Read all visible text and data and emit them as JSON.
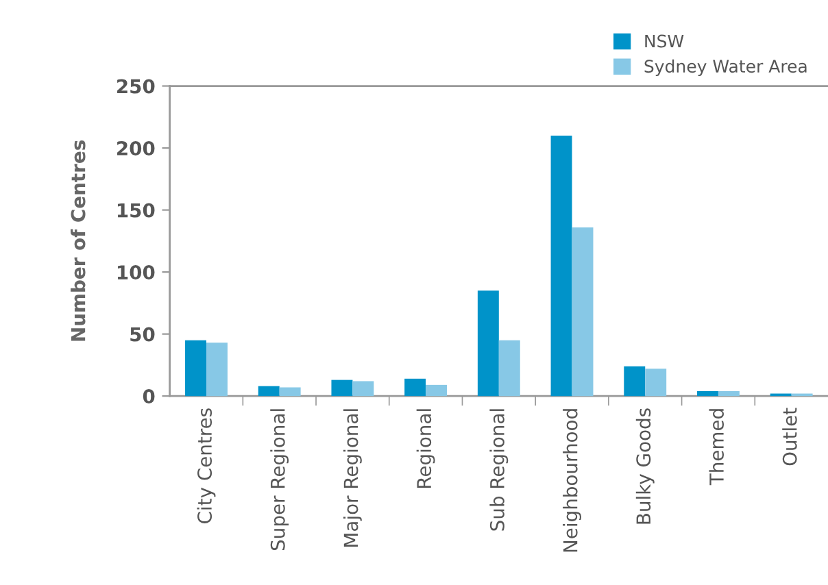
{
  "chart_data": {
    "type": "bar",
    "ylabel": "Number of Centres",
    "categories": [
      "City Centres",
      "Super Regional",
      "Major Regional",
      "Regional",
      "Sub Regional",
      "Neighbourhood",
      "Bulky Goods",
      "Themed",
      "Outlet"
    ],
    "series": [
      {
        "name": "NSW",
        "color": "#0093c9",
        "values": [
          45,
          8,
          13,
          14,
          85,
          210,
          24,
          4,
          2
        ]
      },
      {
        "name": "Sydney Water Area",
        "color": "#87c8e6",
        "values": [
          43,
          7,
          12,
          9,
          45,
          136,
          22,
          4,
          2
        ]
      }
    ],
    "ylim": [
      0,
      250
    ],
    "yticks": [
      0,
      50,
      100,
      150,
      200,
      250
    ],
    "grid": false,
    "legend": "top right"
  }
}
